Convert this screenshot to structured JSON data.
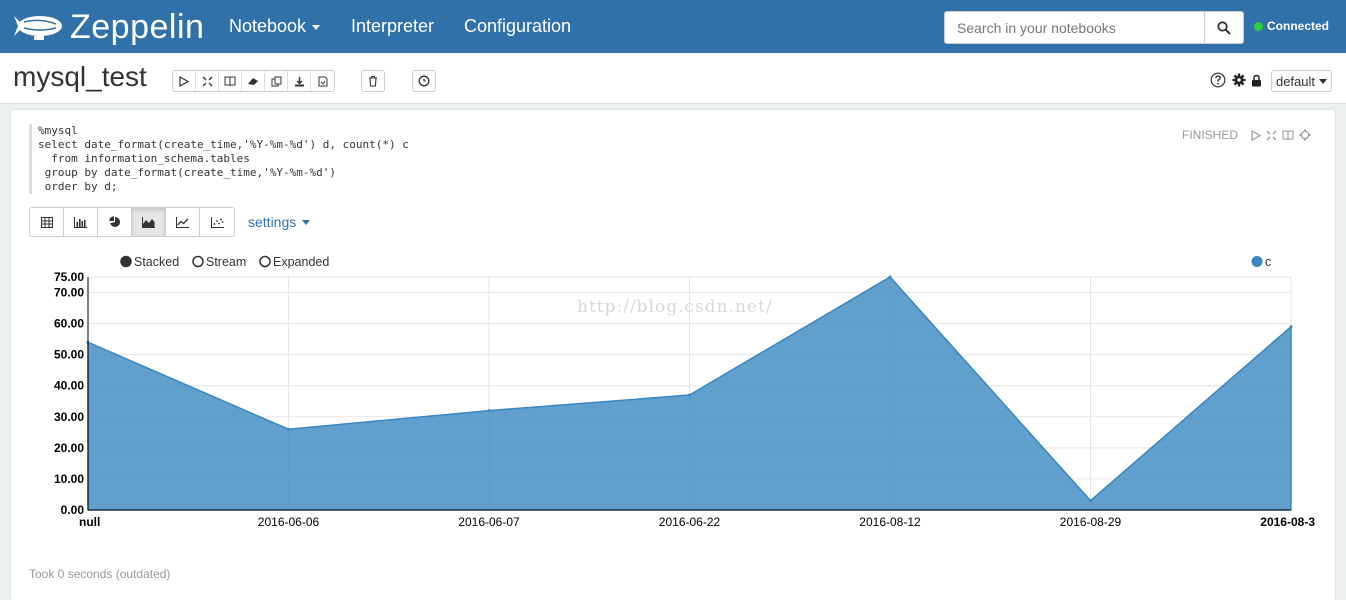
{
  "navbar": {
    "brand": "Zeppelin",
    "items": [
      {
        "label": "Notebook",
        "has_dropdown": true
      },
      {
        "label": "Interpreter"
      },
      {
        "label": "Configuration"
      }
    ],
    "search_placeholder": "Search in your notebooks",
    "connection_status": "Connected",
    "bg_color": "#3071a9",
    "status_color": "#2ecc40"
  },
  "header": {
    "notebook_title": "mysql_test",
    "toolbar_icons": [
      "run-all-icon",
      "toggle-editor-icon",
      "toggle-output-icon",
      "clear-output-icon",
      "clone-icon",
      "export-icon",
      "version-icon"
    ],
    "delete_icon": "trash-icon",
    "schedule_icon": "clock-icon",
    "right_icons": [
      "help-icon",
      "gear-icon",
      "lock-icon"
    ],
    "interpreter_selector": "default"
  },
  "paragraph": {
    "code": "%mysql\nselect date_format(create_time,'%Y-%m-%d') d, count(*) c\n  from information_schema.tables\n group by date_format(create_time,'%Y-%m-%d')\n order by d;",
    "status": "FINISHED",
    "status_icons": [
      "run-icon",
      "collapse-icon",
      "book-icon",
      "settings-icon"
    ],
    "viz_buttons": [
      "table-icon",
      "bar-chart-icon",
      "pie-chart-icon",
      "area-chart-icon",
      "line-chart-icon",
      "scatter-chart-icon"
    ],
    "active_viz": "area-chart-icon",
    "settings_label": "settings",
    "took": "Took 0 seconds (outdated)"
  },
  "chart_data": {
    "type": "area",
    "style_options": [
      {
        "label": "Stacked",
        "selected": true
      },
      {
        "label": "Stream",
        "selected": false
      },
      {
        "label": "Expanded",
        "selected": false
      }
    ],
    "categories": [
      "null",
      "2016-06-06",
      "2016-06-07",
      "2016-06-22",
      "2016-08-12",
      "2016-08-29",
      "2016-08-3"
    ],
    "series": [
      {
        "name": "c",
        "values": [
          54,
          26,
          32,
          37,
          75,
          3,
          59
        ],
        "color": "#3a87c0"
      }
    ],
    "yticks": [
      "0.00",
      "10.00",
      "20.00",
      "30.00",
      "40.00",
      "50.00",
      "60.00",
      "70.00",
      "75.00"
    ],
    "ylim": [
      0,
      75
    ],
    "grid": true,
    "legend_position": "top-right",
    "watermark": "http://blog.csdn.net/"
  }
}
